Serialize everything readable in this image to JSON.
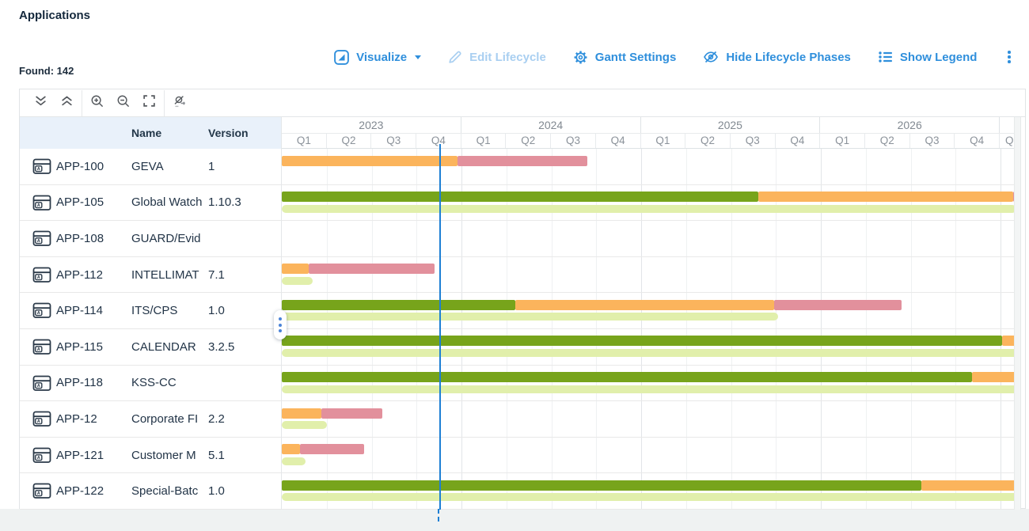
{
  "header": {
    "title": "Applications",
    "found": "Found: 142"
  },
  "actions": {
    "visualize": {
      "label": "Visualize",
      "icon": "visualize-icon"
    },
    "edit_lifecycle": {
      "label": "Edit Lifecycle",
      "icon": "pencil-icon",
      "disabled": true
    },
    "gantt_settings": {
      "label": "Gantt Settings",
      "icon": "gear-icon"
    },
    "hide_phases": {
      "label": "Hide Lifecycle Phases",
      "icon": "eye-off-icon"
    },
    "show_legend": {
      "label": "Show Legend",
      "icon": "legend-list-icon"
    },
    "more": {
      "icon": "kebab-menu-icon"
    }
  },
  "gantt_toolbar": {
    "buttons": [
      {
        "name": "expand-all",
        "icon": "double-chevron-down-icon"
      },
      {
        "name": "collapse-all",
        "icon": "double-chevron-up-icon"
      },
      {
        "name": "zoom-in",
        "icon": "zoom-in-icon"
      },
      {
        "name": "zoom-out",
        "icon": "zoom-out-icon"
      },
      {
        "name": "fit-view",
        "icon": "fit-screen-icon"
      },
      {
        "name": "jump-to-today",
        "icon": "jump-to-date-icon"
      }
    ]
  },
  "table": {
    "header_name": "Name",
    "header_version": "Version"
  },
  "colors": {
    "green": "#77a41b",
    "lightgreen": "#e1efab",
    "orange": "#fbb45c",
    "red": "#e2909c",
    "today": "#1d7fd4",
    "link": "#2f8fdc",
    "link_disabled": "#a9cff1",
    "table_header_bg": "#e9f1fa"
  },
  "chart_data": {
    "type": "gantt",
    "axis": {
      "start": 2023.0,
      "end": 2027.11,
      "today": 2023.88,
      "years": [
        "2023",
        "2024",
        "2025",
        "2026"
      ],
      "quarter_labels": [
        "Q1",
        "Q2",
        "Q3",
        "Q4"
      ],
      "partial_label": "Q"
    },
    "rows": [
      {
        "id": "APP-100",
        "name": "GEVA",
        "version": "1",
        "phases": [
          {
            "color": "orange",
            "start": 2023.0,
            "end": 2023.98
          },
          {
            "color": "red",
            "start": 2023.98,
            "end": 2024.7
          }
        ],
        "sub_phases": []
      },
      {
        "id": "APP-105",
        "name": "Global Watch",
        "version": "1.10.3",
        "phases": [
          {
            "color": "green",
            "start": 2023.0,
            "end": 2025.65
          },
          {
            "color": "orange",
            "start": 2025.65,
            "end": 2027.07
          },
          {
            "color": "red",
            "start": 2027.07,
            "end": 2027.15
          }
        ],
        "sub_phases": [
          {
            "color": "lightgreen",
            "start": 2023.0,
            "end": 2027.09,
            "rounded": true
          }
        ]
      },
      {
        "id": "APP-108",
        "name": "GUARD/Evid",
        "version": "",
        "phases": [],
        "sub_phases": []
      },
      {
        "id": "APP-112",
        "name": "INTELLIMAT",
        "version": "7.1",
        "phases": [
          {
            "color": "orange",
            "start": 2023.0,
            "end": 2023.15
          },
          {
            "color": "red",
            "start": 2023.15,
            "end": 2023.85
          }
        ],
        "sub_phases": [
          {
            "color": "lightgreen",
            "start": 2023.0,
            "end": 2023.17,
            "rounded": true
          }
        ]
      },
      {
        "id": "APP-114",
        "name": "ITS/CPS",
        "version": "1.0",
        "phases": [
          {
            "color": "green",
            "start": 2023.0,
            "end": 2024.3
          },
          {
            "color": "orange",
            "start": 2024.3,
            "end": 2025.74
          },
          {
            "color": "red",
            "start": 2025.74,
            "end": 2026.45
          }
        ],
        "sub_phases": [
          {
            "color": "lightgreen",
            "start": 2023.0,
            "end": 2025.76,
            "rounded": true
          }
        ]
      },
      {
        "id": "APP-115",
        "name": "CALENDAR",
        "version": "3.2.5",
        "phases": [
          {
            "color": "green",
            "start": 2023.0,
            "end": 2027.01
          },
          {
            "color": "orange",
            "start": 2027.01,
            "end": 2027.15
          }
        ],
        "sub_phases": [
          {
            "color": "lightgreen",
            "start": 2023.0,
            "end": 2027.15,
            "rounded": false
          }
        ]
      },
      {
        "id": "APP-118",
        "name": "KSS-CC",
        "version": "",
        "phases": [
          {
            "color": "green",
            "start": 2023.0,
            "end": 2026.84
          },
          {
            "color": "orange",
            "start": 2026.84,
            "end": 2027.15
          }
        ],
        "sub_phases": [
          {
            "color": "lightgreen",
            "start": 2023.0,
            "end": 2027.15,
            "rounded": false
          }
        ]
      },
      {
        "id": "APP-12",
        "name": "Corporate FI",
        "version": "2.2",
        "phases": [
          {
            "color": "orange",
            "start": 2023.0,
            "end": 2023.22
          },
          {
            "color": "red",
            "start": 2023.22,
            "end": 2023.56
          }
        ],
        "sub_phases": [
          {
            "color": "lightgreen",
            "start": 2023.0,
            "end": 2023.25,
            "rounded": true
          }
        ]
      },
      {
        "id": "APP-121",
        "name": "Customer M",
        "version": "5.1",
        "phases": [
          {
            "color": "orange",
            "start": 2023.0,
            "end": 2023.1
          },
          {
            "color": "red",
            "start": 2023.1,
            "end": 2023.46
          }
        ],
        "sub_phases": [
          {
            "color": "lightgreen",
            "start": 2023.0,
            "end": 2023.13,
            "rounded": true
          }
        ]
      },
      {
        "id": "APP-122",
        "name": "Special-Batc",
        "version": "1.0",
        "phases": [
          {
            "color": "green",
            "start": 2023.0,
            "end": 2026.56
          },
          {
            "color": "orange",
            "start": 2026.56,
            "end": 2027.15
          }
        ],
        "sub_phases": [
          {
            "color": "lightgreen",
            "start": 2023.0,
            "end": 2027.15,
            "rounded": false
          }
        ]
      }
    ]
  }
}
